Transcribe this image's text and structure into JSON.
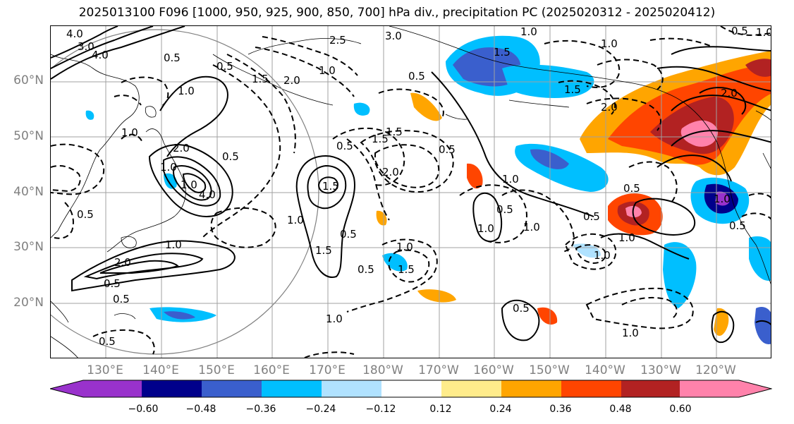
{
  "title": "2025013100 F096 [1000, 950, 925, 900, 850, 700] hPa div., precipitation PC (2025020312 - 2025020412)",
  "latitude_labels": [
    "60°N",
    "50°N",
    "40°N",
    "30°N",
    "20°N"
  ],
  "longitude_labels": [
    "130°E",
    "140°E",
    "150°E",
    "160°E",
    "170°E",
    "180°W",
    "170°W",
    "160°W",
    "150°W",
    "140°W",
    "130°W",
    "120°W"
  ],
  "colorbar": {
    "colors": [
      "#9932cc",
      "#00008b",
      "#3a5fcd",
      "#00bfff",
      "#b0e2ff",
      "#ffffff",
      "#ffec8b",
      "#ffa500",
      "#ff4500",
      "#b22222",
      "#ff82ab"
    ],
    "tick_labels": [
      "−0.60",
      "−0.48",
      "−0.36",
      "−0.24",
      "−0.12",
      "0.12",
      "0.24",
      "0.36",
      "0.48",
      "0.60"
    ]
  },
  "contour_labels": [
    "4.0",
    "3.0",
    "4.0",
    "0.5",
    "0.5",
    "1.5",
    "2.0",
    "1.0",
    "2.5",
    "3.0",
    "1.5",
    "1.0",
    "0.5",
    "1.0",
    "1.0",
    "2.0",
    "1.0",
    "4.0",
    "1.0",
    "0.5",
    "0.5",
    "1.5",
    "0.5",
    "2.0",
    "1.5",
    "1.0",
    "1.0",
    "0.5",
    "1.5",
    "1.0",
    "1.5",
    "2.0",
    "0.5",
    "0.5",
    "0.5",
    "1.0",
    "1.5",
    "0.5",
    "0.5",
    "0.5",
    "1.0",
    "0.5",
    "1.0",
    "1.0",
    "0.5",
    "1.0",
    "1.0",
    "1.5",
    "0.5",
    "1.0",
    "1.0",
    "2.0",
    "2.0",
    "0.5",
    "1.0",
    "1.0",
    "0.5"
  ]
}
